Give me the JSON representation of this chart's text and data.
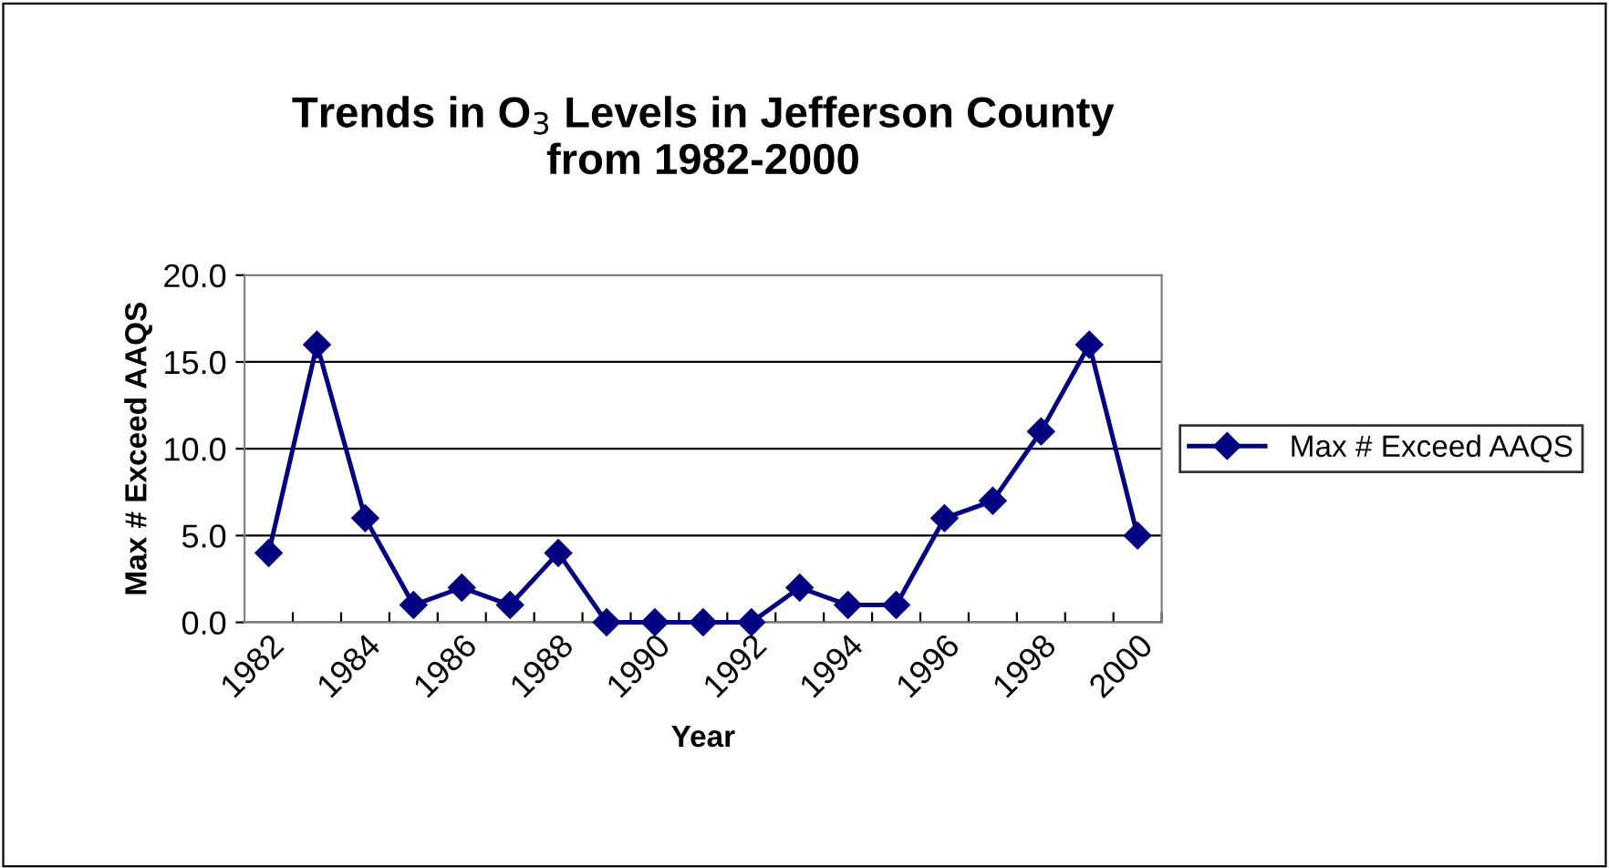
{
  "chart_data": {
    "type": "line",
    "title": "Trends in O$_{3}$ Levels in Jefferson County\nfrom 1982-2000",
    "xlabel": "Year",
    "ylabel": "Max # Exceed AAQS",
    "categories": [
      "1982",
      null,
      "1984",
      null,
      "1986",
      null,
      "1988",
      null,
      "1990",
      null,
      "1992",
      null,
      "1994",
      null,
      "1996",
      null,
      "1998",
      null,
      "2000"
    ],
    "series": [
      {
        "name": "Max # Exceed AAQS",
        "color": "#000080",
        "values": [
          4,
          16,
          6,
          1,
          2,
          1,
          4,
          0,
          0,
          0,
          0,
          2,
          1,
          1,
          6,
          7,
          11,
          16,
          5
        ]
      }
    ],
    "ylim": [
      0,
      20
    ],
    "yticks": [
      {
        "value": 0,
        "label": "0.0"
      },
      {
        "value": 5,
        "label": "5.0"
      },
      {
        "value": 10,
        "label": "10.0"
      },
      {
        "value": 15,
        "label": "15.0"
      },
      {
        "value": 20,
        "label": "20.0"
      }
    ],
    "grid": "y",
    "legend": "right",
    "marker": "diamond",
    "line_style": "solid"
  }
}
